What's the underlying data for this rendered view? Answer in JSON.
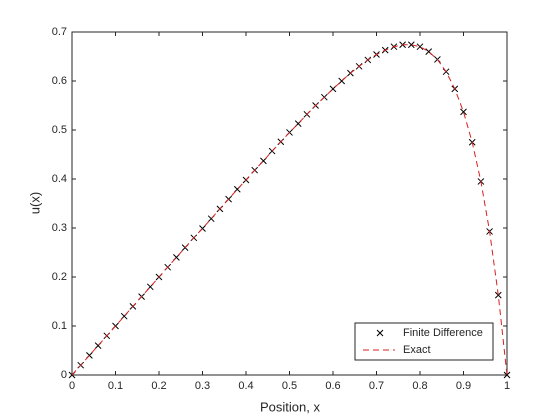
{
  "chart_data": {
    "type": "line",
    "x_label": "Position, x",
    "y_label": "u(x)",
    "x": [
      0,
      0.02,
      0.04,
      0.06,
      0.08,
      0.1,
      0.12,
      0.14,
      0.16,
      0.18,
      0.2,
      0.22,
      0.24,
      0.26,
      0.28,
      0.3,
      0.32,
      0.34,
      0.36,
      0.38,
      0.4,
      0.42,
      0.44,
      0.46,
      0.48,
      0.5,
      0.52,
      0.54,
      0.56,
      0.58,
      0.6,
      0.62,
      0.64,
      0.66,
      0.68,
      0.7,
      0.72,
      0.74,
      0.76,
      0.78,
      0.8,
      0.82,
      0.84,
      0.86,
      0.88,
      0.9,
      0.92,
      0.94,
      0.96,
      0.98,
      1
    ],
    "series": [
      {
        "name": "Finite Difference",
        "color": "#000000",
        "style": "marker",
        "values": [
          0,
          0.02,
          0.04,
          0.06,
          0.08,
          0.1,
          0.12,
          0.14,
          0.16,
          0.18,
          0.2,
          0.22,
          0.24,
          0.26,
          0.28,
          0.299,
          0.319,
          0.339,
          0.359,
          0.379,
          0.398,
          0.418,
          0.437,
          0.457,
          0.476,
          0.495,
          0.513,
          0.532,
          0.55,
          0.567,
          0.584,
          0.6,
          0.616,
          0.63,
          0.643,
          0.654,
          0.663,
          0.67,
          0.674,
          0.674,
          0.67,
          0.66,
          0.644,
          0.619,
          0.584,
          0.537,
          0.475,
          0.395,
          0.293,
          0.163,
          0
        ]
      },
      {
        "name": "Exact",
        "color": "#d62020",
        "style": "dashed",
        "values": [
          0,
          0.02,
          0.04,
          0.06,
          0.08,
          0.1,
          0.12,
          0.14,
          0.16,
          0.18,
          0.2,
          0.22,
          0.24,
          0.26,
          0.28,
          0.299,
          0.319,
          0.339,
          0.359,
          0.379,
          0.398,
          0.418,
          0.437,
          0.457,
          0.476,
          0.495,
          0.513,
          0.532,
          0.55,
          0.567,
          0.584,
          0.6,
          0.616,
          0.63,
          0.643,
          0.654,
          0.663,
          0.67,
          0.674,
          0.674,
          0.67,
          0.66,
          0.644,
          0.619,
          0.584,
          0.537,
          0.475,
          0.395,
          0.293,
          0.163,
          0
        ]
      }
    ],
    "xlim": [
      0,
      1
    ],
    "xticks": [
      0,
      0.1,
      0.2,
      0.3,
      0.4,
      0.5,
      0.6,
      0.7,
      0.8,
      0.9,
      1
    ],
    "ylim": [
      0,
      0.7
    ],
    "yticks": [
      0,
      0.1,
      0.2,
      0.3,
      0.4,
      0.5,
      0.6,
      0.7
    ],
    "grid": false,
    "legend": "lower right"
  }
}
